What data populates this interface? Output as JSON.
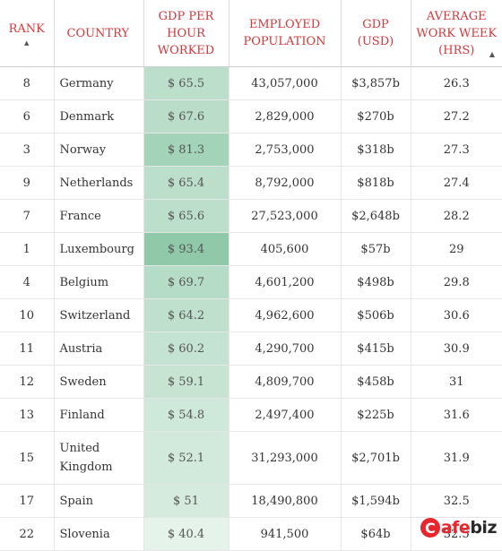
{
  "table": {
    "headers": {
      "rank": "RANK",
      "country": "COUNTRY",
      "gdp_per_hour": "GDP PER HOUR WORKED",
      "employed": "EMPLOYED POPULATION",
      "gdp": "GDP (USD)",
      "avg_week": "AVERAGE WORK WEEK (HRS)"
    },
    "heat_colors": {
      "low": "#e5f3ea",
      "high": "#8fc9aa"
    },
    "rows": [
      {
        "rank": "8",
        "country": "Germany",
        "gdp_per_hour": "$ 65.5",
        "employed": "43,057,000",
        "gdp": "$3,857b",
        "avg_week": "26.3"
      },
      {
        "rank": "6",
        "country": "Denmark",
        "gdp_per_hour": "$ 67.6",
        "employed": "2,829,000",
        "gdp": "$270b",
        "avg_week": "27.2"
      },
      {
        "rank": "3",
        "country": "Norway",
        "gdp_per_hour": "$ 81.3",
        "employed": "2,753,000",
        "gdp": "$318b",
        "avg_week": "27.3"
      },
      {
        "rank": "9",
        "country": "Netherlands",
        "gdp_per_hour": "$ 65.4",
        "employed": "8,792,000",
        "gdp": "$818b",
        "avg_week": "27.4"
      },
      {
        "rank": "7",
        "country": "France",
        "gdp_per_hour": "$ 65.6",
        "employed": "27,523,000",
        "gdp": "$2,648b",
        "avg_week": "28.2"
      },
      {
        "rank": "1",
        "country": "Luxembourg",
        "gdp_per_hour": "$ 93.4",
        "employed": "405,600",
        "gdp": "$57b",
        "avg_week": "29"
      },
      {
        "rank": "4",
        "country": "Belgium",
        "gdp_per_hour": "$ 69.7",
        "employed": "4,601,200",
        "gdp": "$498b",
        "avg_week": "29.8"
      },
      {
        "rank": "10",
        "country": "Switzerland",
        "gdp_per_hour": "$ 64.2",
        "employed": "4,962,600",
        "gdp": "$506b",
        "avg_week": "30.6"
      },
      {
        "rank": "11",
        "country": "Austria",
        "gdp_per_hour": "$ 60.2",
        "employed": "4,290,700",
        "gdp": "$415b",
        "avg_week": "30.9"
      },
      {
        "rank": "12",
        "country": "Sweden",
        "gdp_per_hour": "$ 59.1",
        "employed": "4,809,700",
        "gdp": "$458b",
        "avg_week": "31"
      },
      {
        "rank": "13",
        "country": "Finland",
        "gdp_per_hour": "$ 54.8",
        "employed": "2,497,400",
        "gdp": "$225b",
        "avg_week": "31.6"
      },
      {
        "rank": "15",
        "country": "United Kingdom",
        "gdp_per_hour": "$ 52.1",
        "employed": "31,293,000",
        "gdp": "$2,701b",
        "avg_week": "31.9"
      },
      {
        "rank": "17",
        "country": "Spain",
        "gdp_per_hour": "$ 51",
        "employed": "18,490,800",
        "gdp": "$1,594b",
        "avg_week": "32.5"
      },
      {
        "rank": "22",
        "country": "Slovenia",
        "gdp_per_hour": "$ 40.4",
        "employed": "941,500",
        "gdp": "$64b",
        "avg_week": "32.5"
      }
    ]
  },
  "icons": {
    "sort": "sort-ascending-icon",
    "scroll": "scroll-arrow-icon"
  },
  "watermark": {
    "brand_c": "C",
    "brand_a": "afe",
    "brand_b": "biz"
  }
}
